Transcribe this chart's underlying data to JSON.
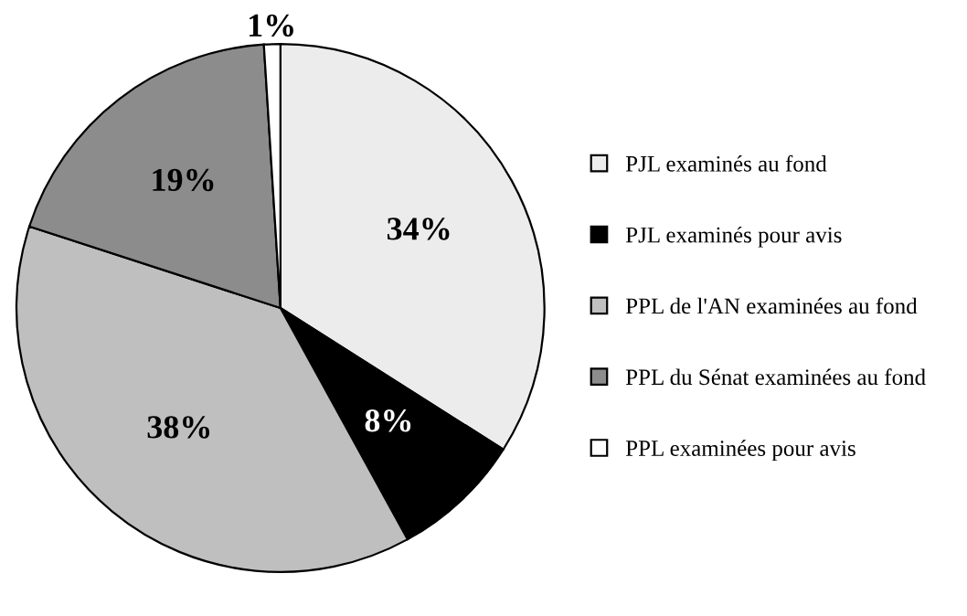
{
  "chart_data": {
    "type": "pie",
    "categories": [
      "PJL examinés au fond",
      "PJL examinés pour avis",
      "PPL de l'AN examinées au fond",
      "PPL du Sénat examinées au fond",
      "PPL examinées pour avis"
    ],
    "values": [
      34,
      8,
      38,
      19,
      1
    ],
    "value_labels": [
      "34%",
      "8%",
      "38%",
      "19%",
      "1%"
    ],
    "colors": [
      "#ececec",
      "#000000",
      "#bfbfbf",
      "#8c8c8c",
      "#ffffff"
    ],
    "legend": "right"
  }
}
